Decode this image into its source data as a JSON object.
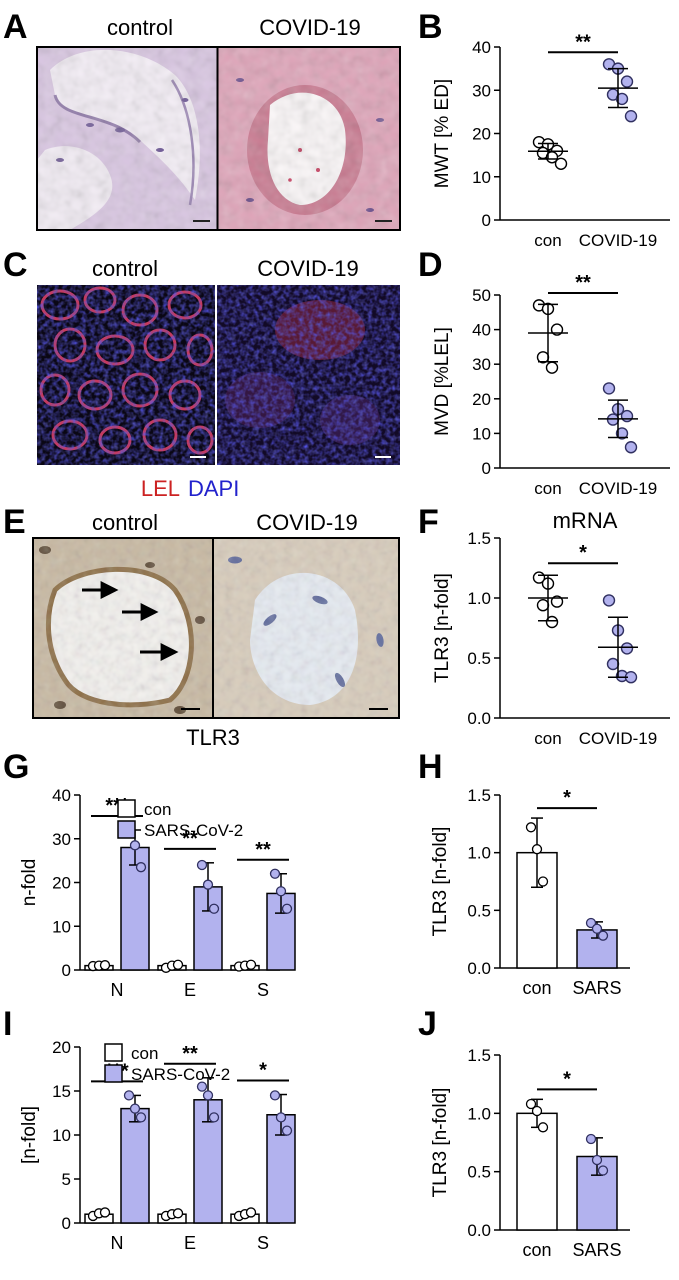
{
  "panel_letters": [
    "A",
    "B",
    "C",
    "D",
    "E",
    "F",
    "G",
    "H",
    "I",
    "J"
  ],
  "panel_a": {
    "left_label": "control",
    "right_label": "COVID-19"
  },
  "panel_c": {
    "left_label": "control",
    "right_label": "COVID-19",
    "caption_red": "LEL",
    "caption_blue": "DAPI"
  },
  "panel_e": {
    "left_label": "control",
    "right_label": "COVID-19",
    "caption": "TLR3"
  },
  "colors": {
    "group_fill": "#b2b2ee",
    "marker_stroke": "#303060",
    "lel_red": "#cc2222",
    "dapi_blue": "#2222cc"
  },
  "chart_data": [
    {
      "id": "B",
      "type": "scatter",
      "title": "",
      "xlabel": "",
      "ylabel": "MWT [% ED]",
      "categories": [
        "con",
        "COVID-19"
      ],
      "ylim": [
        0,
        40
      ],
      "yticks": [
        0,
        10,
        20,
        30,
        40
      ],
      "significance": "**",
      "groups": [
        {
          "points": [
            18,
            17.5,
            16,
            15.5,
            14.5,
            13
          ],
          "mean": 15.9,
          "sd": 1.8,
          "filled": false
        },
        {
          "points": [
            36,
            35,
            32,
            29,
            28,
            24
          ],
          "mean": 30.5,
          "sd": 4.5,
          "filled": true
        }
      ]
    },
    {
      "id": "D",
      "type": "scatter",
      "title": "",
      "xlabel": "",
      "ylabel": "MVD [%LEL]",
      "categories": [
        "con",
        "COVID-19"
      ],
      "ylim": [
        0,
        50
      ],
      "yticks": [
        0,
        10,
        20,
        30,
        40,
        50
      ],
      "significance": "**",
      "groups": [
        {
          "points": [
            47,
            46,
            40,
            32,
            29
          ],
          "mean": 39,
          "sd": 8.3,
          "filled": false
        },
        {
          "points": [
            23,
            17,
            15,
            14,
            10,
            6
          ],
          "mean": 14.2,
          "sd": 5.4,
          "filled": true
        }
      ]
    },
    {
      "id": "F",
      "type": "scatter",
      "title": "mRNA",
      "xlabel": "",
      "ylabel": "TLR3 [n-fold]",
      "categories": [
        "con",
        "COVID-19"
      ],
      "ylim": [
        0,
        1.5
      ],
      "yticks": [
        "0.0",
        "0.5",
        "1.0",
        "1.5"
      ],
      "significance": "*",
      "groups": [
        {
          "points": [
            1.17,
            1.12,
            0.97,
            0.94,
            0.8
          ],
          "mean": 1.0,
          "sd": 0.19,
          "filled": false
        },
        {
          "points": [
            0.98,
            0.73,
            0.58,
            0.45,
            0.35,
            0.34
          ],
          "mean": 0.59,
          "sd": 0.25,
          "filled": true
        }
      ]
    },
    {
      "id": "G",
      "type": "bar",
      "title": "",
      "xlabel": "",
      "ylabel": "n-fold",
      "categories": [
        "N",
        "E",
        "S"
      ],
      "ylim": [
        0,
        40
      ],
      "yticks": [
        0,
        10,
        20,
        30,
        40
      ],
      "legend": [
        "con",
        "SARS-CoV-2"
      ],
      "significance": [
        "***",
        "**",
        "**"
      ],
      "series": [
        {
          "name": "con",
          "values": [
            1,
            1,
            1
          ],
          "sd": [
            0.2,
            0.3,
            0.2
          ],
          "points": [
            [
              0.9,
              1.0,
              1.1
            ],
            [
              0.5,
              1.0,
              1.2
            ],
            [
              0.8,
              1.0,
              1.2
            ]
          ]
        },
        {
          "name": "SARS-CoV-2",
          "values": [
            28,
            19,
            17.5
          ],
          "sd": [
            4,
            5.5,
            4.5
          ],
          "points": [
            [
              31.5,
              28.5,
              23.5
            ],
            [
              24,
              19.5,
              14
            ],
            [
              22,
              18,
              14
            ]
          ]
        }
      ]
    },
    {
      "id": "H",
      "type": "bar",
      "title": "",
      "xlabel": "",
      "ylabel": "TLR3 [n-fold]",
      "categories": [
        "con",
        "SARS"
      ],
      "ylim": [
        0,
        1.5
      ],
      "yticks": [
        "0.0",
        "0.5",
        "1.0",
        "1.5"
      ],
      "significance": "*",
      "series": [
        {
          "values": [
            1.0,
            0.33
          ],
          "sd": [
            0.3,
            0.07
          ],
          "points": [
            [
              1.22,
              1.03,
              0.75
            ],
            [
              0.39,
              0.34,
              0.28
            ]
          ]
        }
      ]
    },
    {
      "id": "I",
      "type": "bar",
      "title": "",
      "xlabel": "",
      "ylabel": "[n-fold]",
      "categories": [
        "N",
        "E",
        "S"
      ],
      "ylim": [
        0,
        20
      ],
      "yticks": [
        0,
        5,
        10,
        15,
        20
      ],
      "legend": [
        "con",
        "SARS-CoV-2"
      ],
      "significance": [
        "***",
        "**",
        "*"
      ],
      "series": [
        {
          "name": "con",
          "values": [
            1,
            1,
            1
          ],
          "sd": [
            0.25,
            0.25,
            0.25
          ],
          "points": [
            [
              0.8,
              1.1,
              1.2
            ],
            [
              0.8,
              1.0,
              1.1
            ],
            [
              0.8,
              1.0,
              1.2
            ]
          ]
        },
        {
          "name": "SARS-CoV-2",
          "values": [
            13,
            14,
            12.3
          ],
          "sd": [
            1.5,
            2.5,
            2.3
          ],
          "points": [
            [
              14.5,
              13,
              12
            ],
            [
              15.5,
              14.5,
              12
            ],
            [
              14.5,
              12,
              10.5
            ]
          ]
        }
      ]
    },
    {
      "id": "J",
      "type": "bar",
      "title": "",
      "xlabel": "",
      "ylabel": "TLR3 [n-fold]",
      "categories": [
        "con",
        "SARS"
      ],
      "ylim": [
        0,
        1.5
      ],
      "yticks": [
        "0.0",
        "0.5",
        "1.0",
        "1.5"
      ],
      "significance": "*",
      "series": [
        {
          "values": [
            1.0,
            0.63
          ],
          "sd": [
            0.12,
            0.16
          ],
          "points": [
            [
              1.08,
              1.02,
              0.88
            ],
            [
              0.78,
              0.6,
              0.51
            ]
          ]
        }
      ]
    }
  ]
}
